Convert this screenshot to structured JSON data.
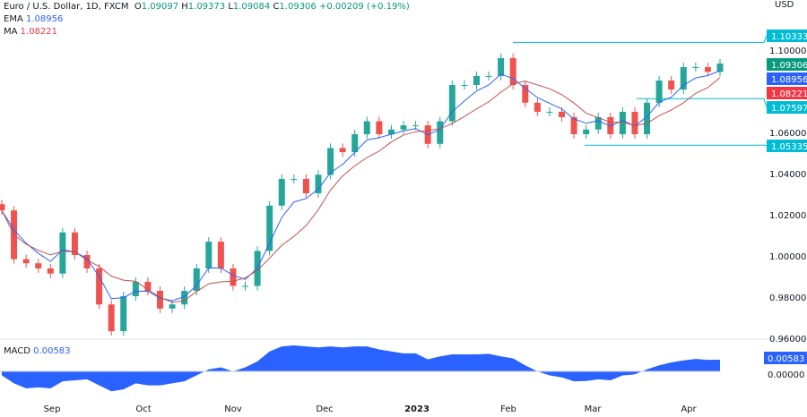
{
  "header": {
    "symbol": "Euro / U.S. Dollar, 1D, FXCM",
    "open": "1.09097",
    "high": "1.09373",
    "low": "1.09084",
    "close": "1.09306",
    "change": "+0.00209 (+0.19%)",
    "ema_label": "EMA",
    "ema_value": "1.08956",
    "ma_label": "MA",
    "ma_value": "1.08221",
    "currency": "USD"
  },
  "macd": {
    "label": "MACD",
    "value": "0.00583",
    "zero": "0.00000"
  },
  "colors": {
    "up": "#26a69a",
    "down": "#ef5350",
    "ema": "#2962ff",
    "ma": "#c0504d",
    "level": "#00bcd4",
    "macd": "#2962ff"
  },
  "chart_data": {
    "type": "candlestick",
    "ylim": [
      0.96,
      1.11
    ],
    "yticks": [
      "1.10000",
      "1.06000",
      "1.04000",
      "1.02000",
      "1.00000",
      "0.98000",
      "0.96000"
    ],
    "xticks": [
      "Sep",
      "Oct",
      "Nov",
      "Dec",
      "2023",
      "Feb",
      "Mar",
      "Apr"
    ],
    "closes": [
      1.0217,
      0.998,
      0.996,
      0.9935,
      0.991,
      1.011,
      1.0,
      0.9935,
      0.976,
      0.963,
      0.98,
      0.987,
      0.9826,
      0.974,
      0.976,
      0.9826,
      0.9935,
      1.0065,
      0.9935,
      0.985,
      0.985,
      1.002,
      1.024,
      1.037,
      1.037,
      1.03,
      1.039,
      1.052,
      1.05,
      1.0587,
      1.065,
      1.0587,
      1.061,
      1.063,
      1.063,
      1.054,
      1.065,
      1.0826,
      1.0826,
      1.087,
      1.087,
      1.0957,
      1.0826,
      1.074,
      1.0696,
      1.0696,
      1.067,
      1.0587,
      1.061,
      1.067,
      1.0587,
      1.0696,
      1.0587,
      1.074,
      1.0848,
      1.0804,
      1.0913,
      1.0913,
      1.089,
      1.09306
    ],
    "price_tags": [
      {
        "label": "1.10333",
        "color": "#00bcd4",
        "line": true
      },
      {
        "label": "1.09306",
        "color": "#089981"
      },
      {
        "label": "1.08956",
        "color": "#2962ff"
      },
      {
        "label": "1.08221",
        "color": "#f23645"
      },
      {
        "label": "1.07597",
        "color": "#00bcd4",
        "line": true
      },
      {
        "label": "1.05335",
        "color": "#00bcd4",
        "line": true
      }
    ],
    "macd_values": [
      -0.002,
      -0.006,
      -0.0085,
      -0.008,
      -0.0085,
      -0.005,
      -0.0045,
      -0.004,
      -0.007,
      -0.01,
      -0.009,
      -0.006,
      -0.007,
      -0.007,
      -0.006,
      -0.005,
      -0.002,
      0.001,
      0.002,
      0.0,
      0.002,
      0.005,
      0.01,
      0.0125,
      0.013,
      0.0125,
      0.012,
      0.0125,
      0.012,
      0.0125,
      0.0125,
      0.011,
      0.01,
      0.009,
      0.009,
      0.006,
      0.0075,
      0.0085,
      0.0085,
      0.0085,
      0.0088,
      0.0075,
      0.0065,
      0.003,
      0.0,
      -0.002,
      -0.003,
      -0.005,
      -0.0048,
      -0.004,
      -0.0045,
      -0.002,
      -0.0015,
      0.001,
      0.003,
      0.0045,
      0.0055,
      0.0062,
      0.0058,
      0.00583
    ]
  }
}
